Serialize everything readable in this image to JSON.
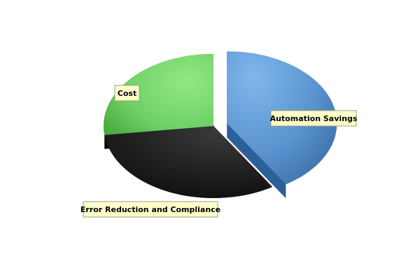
{
  "chart_data": {
    "type": "pie",
    "title": "",
    "series": [
      {
        "name": "Automation Savings",
        "value": 41,
        "color": "#5b95d0",
        "exploded": true
      },
      {
        "name": "Error Reduction and Compliance",
        "value": 32,
        "color": "#1e1e1e",
        "exploded": false
      },
      {
        "name": "Cost",
        "value": 27,
        "color": "#5fc95f",
        "exploded": false
      }
    ],
    "three_d": true,
    "legend": "none"
  }
}
